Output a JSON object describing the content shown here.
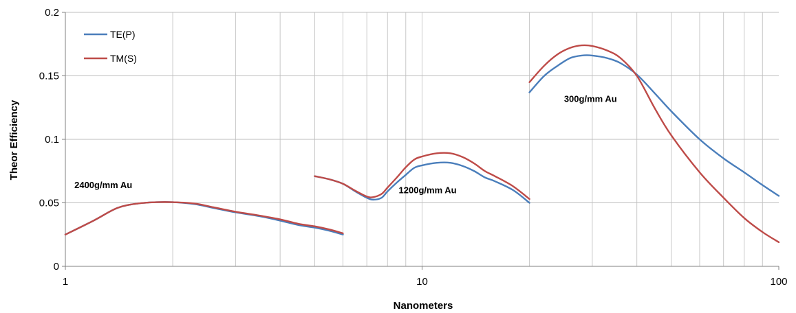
{
  "chart_data": {
    "type": "line",
    "title": "",
    "xlabel": "Nanometers",
    "ylabel": "Theor Efficiency",
    "xscale": "log",
    "xlim": [
      1,
      100
    ],
    "ylim": [
      0,
      0.2
    ],
    "xticks": [
      {
        "value": 1,
        "label": "1"
      },
      {
        "value": 10,
        "label": "10"
      },
      {
        "value": 100,
        "label": "100"
      }
    ],
    "yticks": [
      {
        "value": 0,
        "label": "0"
      },
      {
        "value": 0.05,
        "label": "0.05"
      },
      {
        "value": 0.1,
        "label": "0.1"
      },
      {
        "value": 0.15,
        "label": "0.15"
      },
      {
        "value": 0.2,
        "label": "0.2"
      }
    ],
    "grid": true,
    "legend_position": "top-left",
    "series": [
      {
        "name": "TE(P)",
        "color": "#4a7ebb",
        "segments": [
          [
            [
              1,
              0.025
            ],
            [
              1.2,
              0.036
            ],
            [
              1.4,
              0.046
            ],
            [
              1.6,
              0.0495
            ],
            [
              1.8,
              0.0505
            ],
            [
              2,
              0.0505
            ],
            [
              2.3,
              0.049
            ],
            [
              2.6,
              0.046
            ],
            [
              3,
              0.0425
            ],
            [
              3.5,
              0.0395
            ],
            [
              4,
              0.036
            ],
            [
              4.5,
              0.0325
            ],
            [
              5,
              0.0305
            ],
            [
              5.5,
              0.028
            ],
            [
              6,
              0.025
            ]
          ],
          [
            [
              5,
              0.071
            ],
            [
              5.5,
              0.0685
            ],
            [
              6,
              0.065
            ],
            [
              6.5,
              0.059
            ],
            [
              7,
              0.054
            ],
            [
              7.3,
              0.0525
            ],
            [
              7.7,
              0.054
            ],
            [
              8,
              0.059
            ],
            [
              8.5,
              0.066
            ],
            [
              9,
              0.072
            ],
            [
              9.5,
              0.0775
            ],
            [
              10,
              0.0795
            ],
            [
              11,
              0.0815
            ],
            [
              12,
              0.0815
            ],
            [
              13,
              0.079
            ],
            [
              14,
              0.075
            ],
            [
              15,
              0.07
            ],
            [
              16,
              0.067
            ],
            [
              18,
              0.06
            ],
            [
              20,
              0.05
            ]
          ],
          [
            [
              20,
              0.137
            ],
            [
              22,
              0.15
            ],
            [
              24,
              0.158
            ],
            [
              26,
              0.164
            ],
            [
              28,
              0.166
            ],
            [
              30,
              0.166
            ],
            [
              33,
              0.164
            ],
            [
              36,
              0.16
            ],
            [
              40,
              0.151
            ],
            [
              45,
              0.136
            ],
            [
              50,
              0.122
            ],
            [
              60,
              0.1
            ],
            [
              70,
              0.085
            ],
            [
              80,
              0.074
            ],
            [
              90,
              0.064
            ],
            [
              100,
              0.0555
            ]
          ]
        ]
      },
      {
        "name": "TM(S)",
        "color": "#be4b48",
        "segments": [
          [
            [
              1,
              0.025
            ],
            [
              1.2,
              0.036
            ],
            [
              1.4,
              0.046
            ],
            [
              1.6,
              0.0495
            ],
            [
              1.8,
              0.0505
            ],
            [
              2,
              0.0505
            ],
            [
              2.3,
              0.0495
            ],
            [
              2.6,
              0.0465
            ],
            [
              3,
              0.043
            ],
            [
              3.5,
              0.04
            ],
            [
              4,
              0.037
            ],
            [
              4.5,
              0.0335
            ],
            [
              5,
              0.0315
            ],
            [
              5.5,
              0.029
            ],
            [
              6,
              0.026
            ]
          ],
          [
            [
              5,
              0.071
            ],
            [
              5.5,
              0.0685
            ],
            [
              6,
              0.065
            ],
            [
              6.5,
              0.0595
            ],
            [
              7,
              0.055
            ],
            [
              7.3,
              0.0545
            ],
            [
              7.7,
              0.057
            ],
            [
              8,
              0.062
            ],
            [
              8.5,
              0.07
            ],
            [
              9,
              0.078
            ],
            [
              9.5,
              0.084
            ],
            [
              10,
              0.0865
            ],
            [
              11,
              0.089
            ],
            [
              12,
              0.089
            ],
            [
              13,
              0.086
            ],
            [
              14,
              0.081
            ],
            [
              15,
              0.075
            ],
            [
              16,
              0.071
            ],
            [
              18,
              0.063
            ],
            [
              20,
              0.053
            ]
          ],
          [
            [
              20,
              0.145
            ],
            [
              22,
              0.158
            ],
            [
              24,
              0.167
            ],
            [
              26,
              0.172
            ],
            [
              28,
              0.174
            ],
            [
              30,
              0.1735
            ],
            [
              33,
              0.17
            ],
            [
              36,
              0.164
            ],
            [
              40,
              0.15
            ],
            [
              45,
              0.124
            ],
            [
              50,
              0.103
            ],
            [
              60,
              0.074
            ],
            [
              70,
              0.054
            ],
            [
              80,
              0.038
            ],
            [
              90,
              0.027
            ],
            [
              100,
              0.019
            ]
          ]
        ]
      }
    ],
    "annotations": [
      {
        "text": "2400g/mm Au",
        "x": 1.06,
        "y": 0.0615
      },
      {
        "text": "1200g/mm Au",
        "x": 8.6,
        "y": 0.0575
      },
      {
        "text": "300g/mm Au",
        "x": 25,
        "y": 0.1295
      }
    ]
  }
}
